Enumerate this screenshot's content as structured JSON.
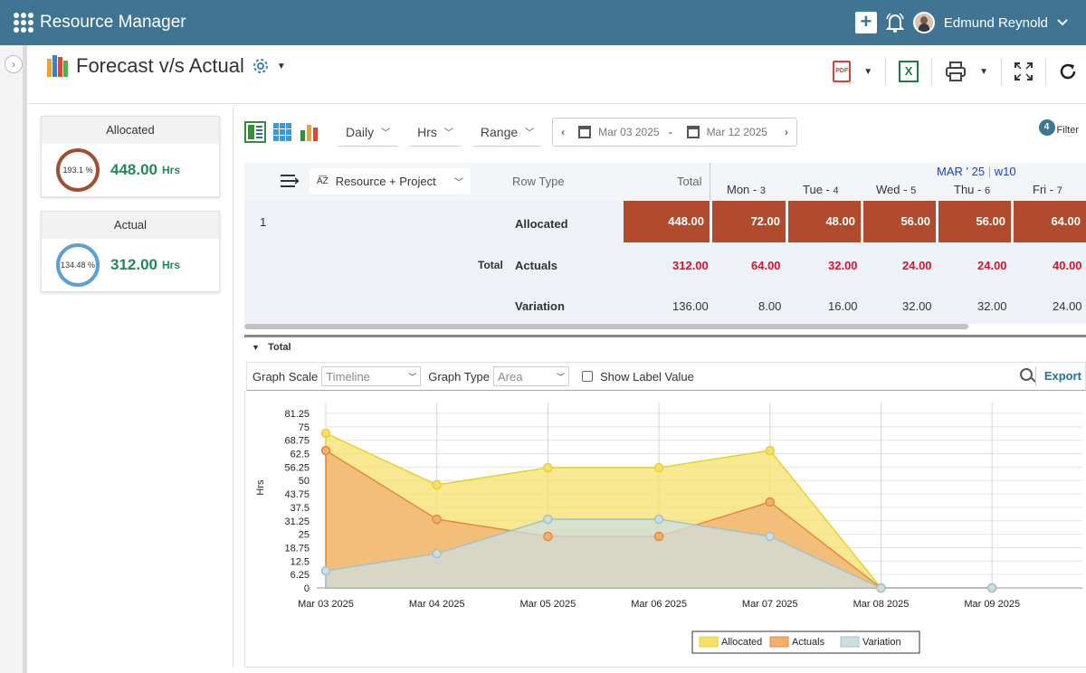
{
  "app": {
    "title": "Resource Manager",
    "user": "Edmund Reynold"
  },
  "page": {
    "title": "Forecast v/s Actual"
  },
  "kpis": [
    {
      "label": "Allocated",
      "percent": "193.1 %",
      "value": "448.00",
      "unit": "Hrs",
      "ring_color": "#a0502e"
    },
    {
      "label": "Actual",
      "percent": "134.48 %",
      "value": "312.00",
      "unit": "Hrs",
      "ring_color": "#5b9fd6"
    }
  ],
  "controls": {
    "period": "Daily",
    "unit": "Hrs",
    "range": "Range",
    "date_from": "Mar 03 2025",
    "date_sep": "-",
    "date_to": "Mar 12 2025",
    "filter_count": "4",
    "filter_label": "Filter"
  },
  "grid": {
    "group_by": "Resource + Project",
    "row_type_header": "Row Type",
    "total_header": "Total",
    "month_week": "MAR ' 25",
    "week": "w10",
    "days": [
      {
        "name": "Mon -",
        "num": "3"
      },
      {
        "name": "Tue -",
        "num": "4"
      },
      {
        "name": "Wed -",
        "num": "5"
      },
      {
        "name": "Thu -",
        "num": "6"
      },
      {
        "name": "Fri -",
        "num": "7"
      }
    ],
    "row_index": "1",
    "total_label": "Total",
    "rows": [
      {
        "type": "Allocated",
        "total": "448.00",
        "values": [
          "72.00",
          "48.00",
          "56.00",
          "56.00",
          "64.00"
        ]
      },
      {
        "type": "Actuals",
        "total": "312.00",
        "values": [
          "64.00",
          "32.00",
          "24.00",
          "24.00",
          "40.00"
        ]
      },
      {
        "type": "Variation",
        "total": "136.00",
        "values": [
          "8.00",
          "16.00",
          "32.00",
          "32.00",
          "24.00"
        ]
      }
    ]
  },
  "graph_panel": {
    "section": "Total",
    "scale_label": "Graph Scale",
    "scale_value": "Timeline",
    "type_label": "Graph Type",
    "type_value": "Area",
    "show_label": "Show Label Value",
    "export": "Export"
  },
  "chart_data": {
    "type": "area",
    "x": [
      "Mar 03 2025",
      "Mar 04 2025",
      "Mar 05 2025",
      "Mar 06 2025",
      "Mar 07 2025",
      "Mar 08 2025",
      "Mar 09 2025"
    ],
    "ylabel": "Hrs",
    "ylim": [
      0,
      81.25
    ],
    "yticks": [
      "0",
      "6.25",
      "12.5",
      "18.75",
      "25",
      "31.25",
      "37.5",
      "43.75",
      "50",
      "56.25",
      "62.5",
      "68.75",
      "75",
      "81.25"
    ],
    "series": [
      {
        "name": "Allocated",
        "values": [
          72,
          48,
          56,
          56,
          64,
          0,
          0
        ],
        "color": "#f5e06e",
        "stroke": "#e8d12a"
      },
      {
        "name": "Actuals",
        "values": [
          64,
          32,
          24,
          24,
          40,
          0,
          0
        ],
        "color": "#f0b070",
        "stroke": "#e58a3c"
      },
      {
        "name": "Variation",
        "values": [
          8,
          16,
          32,
          32,
          24,
          0,
          0
        ],
        "color": "#cfdedd",
        "stroke": "#9ec3cf"
      }
    ],
    "grid": true,
    "legend": "bottom"
  }
}
